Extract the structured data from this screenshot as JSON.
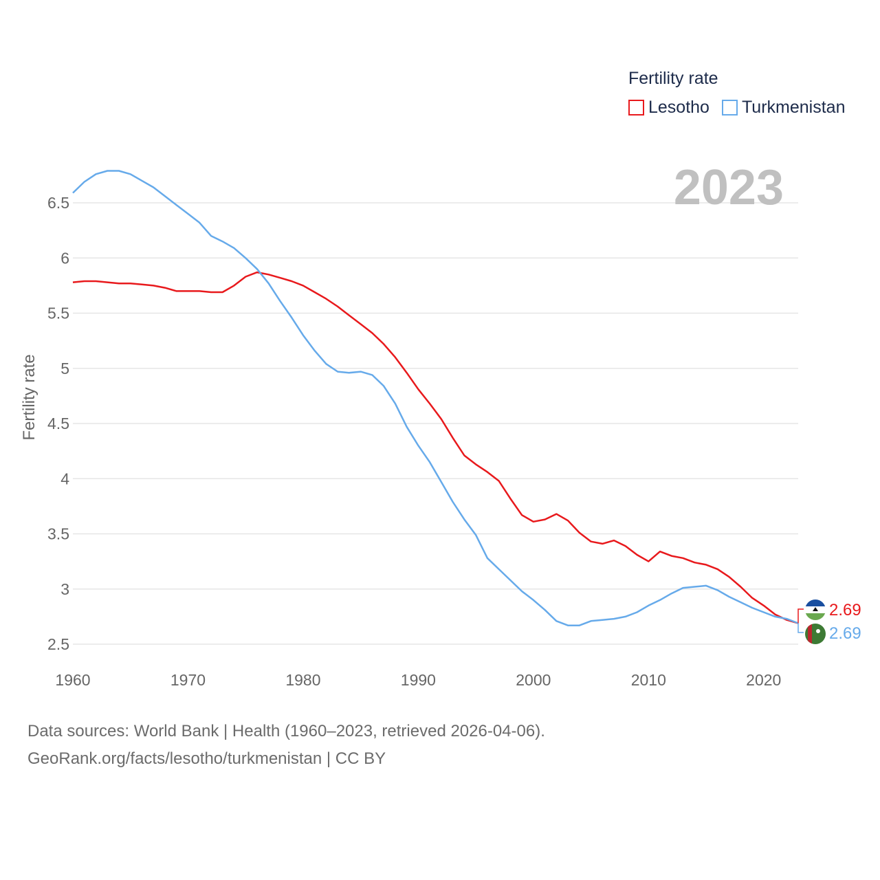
{
  "legend": {
    "title": "Fertility rate",
    "items": [
      {
        "label": "Lesotho",
        "color": "#e8191c"
      },
      {
        "label": "Turkmenistan",
        "color": "#66aaea"
      }
    ]
  },
  "year_display": "2023",
  "source": {
    "line1": "Data sources: World Bank | Health (1960–2023, retrieved 2026-04-06).",
    "line2": "GeoRank.org/facts/lesotho/turkmenistan | CC BY"
  },
  "chart_data": {
    "type": "line",
    "title": "Fertility rate",
    "xlabel": "",
    "ylabel": "Fertility rate",
    "xlim": [
      1960,
      2023
    ],
    "ylim": [
      2.5,
      6.8
    ],
    "xticks": [
      "1960",
      "1970",
      "1980",
      "1990",
      "2000",
      "2010",
      "2020"
    ],
    "yticks": [
      "2.5",
      "3",
      "3.5",
      "4",
      "4.5",
      "5",
      "5.5",
      "6",
      "6.5"
    ],
    "grid": true,
    "legend_position": "top-right",
    "x": [
      1960,
      1961,
      1962,
      1963,
      1964,
      1965,
      1966,
      1967,
      1968,
      1969,
      1970,
      1971,
      1972,
      1973,
      1974,
      1975,
      1976,
      1977,
      1978,
      1979,
      1980,
      1981,
      1982,
      1983,
      1984,
      1985,
      1986,
      1987,
      1988,
      1989,
      1990,
      1991,
      1992,
      1993,
      1994,
      1995,
      1996,
      1997,
      1998,
      1999,
      2000,
      2001,
      2002,
      2003,
      2004,
      2005,
      2006,
      2007,
      2008,
      2009,
      2010,
      2011,
      2012,
      2013,
      2014,
      2015,
      2016,
      2017,
      2018,
      2019,
      2020,
      2021,
      2022,
      2023
    ],
    "series": [
      {
        "name": "Lesotho",
        "color": "#e8191c",
        "end_label": "2.69",
        "values": [
          5.78,
          5.79,
          5.79,
          5.78,
          5.77,
          5.77,
          5.76,
          5.75,
          5.73,
          5.7,
          5.7,
          5.7,
          5.69,
          5.69,
          5.75,
          5.83,
          5.87,
          5.85,
          5.82,
          5.79,
          5.75,
          5.69,
          5.63,
          5.56,
          5.48,
          5.4,
          5.32,
          5.22,
          5.1,
          4.96,
          4.81,
          4.68,
          4.54,
          4.37,
          4.21,
          4.13,
          4.06,
          3.98,
          3.82,
          3.67,
          3.61,
          3.63,
          3.68,
          3.62,
          3.51,
          3.43,
          3.41,
          3.44,
          3.39,
          3.31,
          3.25,
          3.34,
          3.3,
          3.28,
          3.24,
          3.22,
          3.18,
          3.11,
          3.02,
          2.92,
          2.85,
          2.77,
          2.72,
          2.69
        ]
      },
      {
        "name": "Turkmenistan",
        "color": "#66aaea",
        "end_label": "2.69",
        "values": [
          6.59,
          6.69,
          6.76,
          6.79,
          6.79,
          6.76,
          6.7,
          6.64,
          6.56,
          6.48,
          6.4,
          6.32,
          6.2,
          6.15,
          6.09,
          6.0,
          5.9,
          5.77,
          5.61,
          5.46,
          5.3,
          5.16,
          5.04,
          4.97,
          4.96,
          4.97,
          4.94,
          4.84,
          4.68,
          4.47,
          4.3,
          4.15,
          3.97,
          3.79,
          3.63,
          3.49,
          3.28,
          3.18,
          3.08,
          2.98,
          2.9,
          2.81,
          2.71,
          2.67,
          2.67,
          2.71,
          2.72,
          2.73,
          2.75,
          2.79,
          2.85,
          2.9,
          2.96,
          3.01,
          3.02,
          3.03,
          2.99,
          2.93,
          2.88,
          2.83,
          2.79,
          2.75,
          2.73,
          2.69
        ]
      }
    ]
  }
}
